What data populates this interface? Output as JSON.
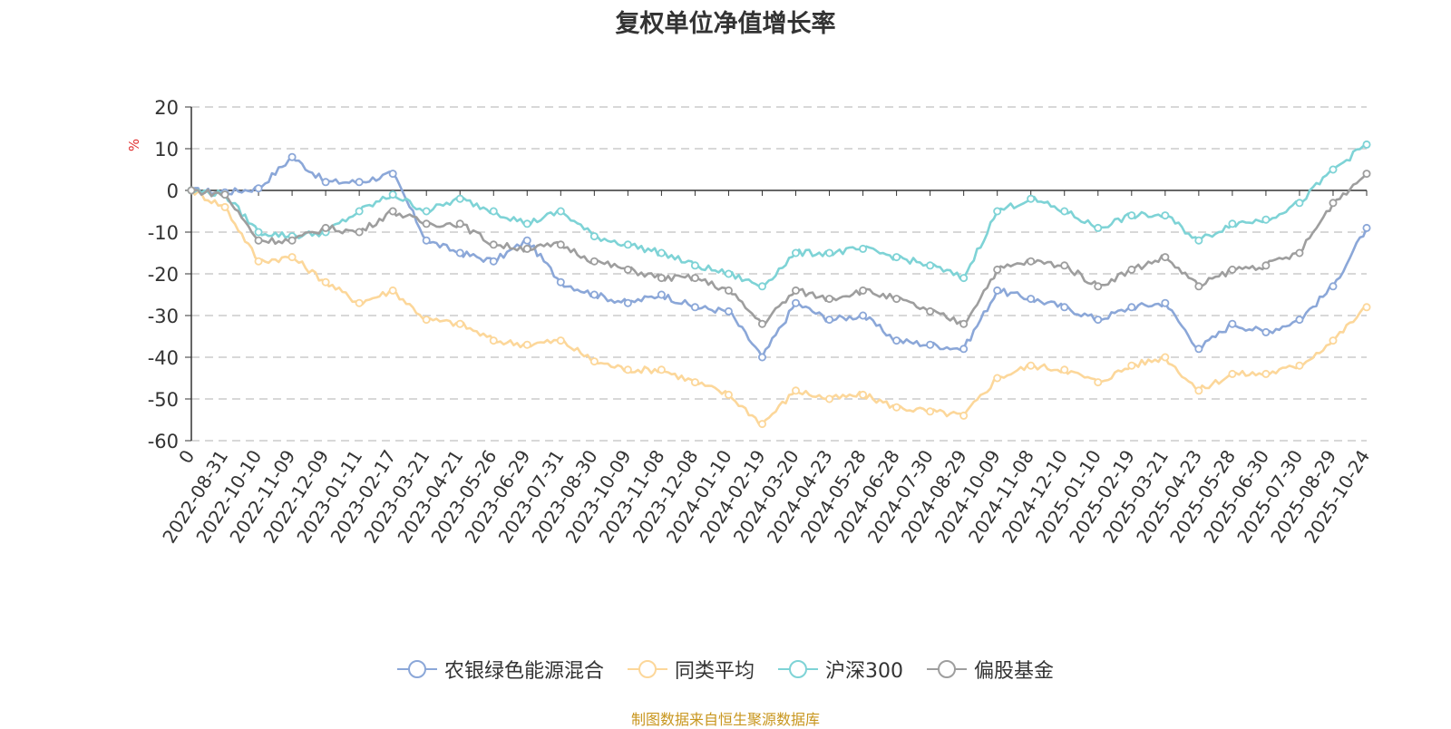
{
  "chart_data": {
    "type": "line",
    "title": "复权单位净值增长率",
    "ylabel": "%",
    "xlabel": "",
    "ylim": [
      -60,
      20
    ],
    "yticks": [
      20,
      10,
      0,
      -10,
      -20,
      -30,
      -40,
      -50,
      -60
    ],
    "categories": [
      "0",
      "2022-08-31",
      "2022-10-10",
      "2022-11-09",
      "2022-12-09",
      "2023-01-11",
      "2023-02-17",
      "2023-03-21",
      "2023-04-21",
      "2023-05-26",
      "2023-06-29",
      "2023-07-31",
      "2023-08-30",
      "2023-10-09",
      "2023-11-08",
      "2023-12-08",
      "2024-01-10",
      "2024-02-19",
      "2024-03-20",
      "2024-04-23",
      "2024-05-28",
      "2024-06-28",
      "2024-07-30",
      "2024-08-29",
      "2024-10-09",
      "2024-11-08",
      "2024-12-10",
      "2025-01-10",
      "2025-02-19",
      "2025-03-21",
      "2025-04-23",
      "2025-05-28",
      "2025-06-30",
      "2025-07-30",
      "2025-08-29",
      "2025-10-24"
    ],
    "grid": true,
    "legend_position": "bottom",
    "series": [
      {
        "name": "农银绿色能源混合",
        "color": "#8ba7d8",
        "values": [
          0,
          -0.5,
          0.5,
          8,
          2,
          2,
          4,
          -12,
          -15,
          -17,
          -12,
          -22,
          -25,
          -27,
          -25,
          -28,
          -29,
          -40,
          -27,
          -31,
          -30,
          -36,
          -37,
          -38,
          -24,
          -26,
          -28,
          -31,
          -28,
          -27,
          -38,
          -32,
          -34,
          -31,
          -23,
          -9
        ]
      },
      {
        "name": "同类平均",
        "color": "#fcd79a",
        "values": [
          0,
          -4,
          -17,
          -16,
          -22,
          -27,
          -24,
          -31,
          -32,
          -36,
          -37,
          -36,
          -41,
          -43,
          -43,
          -46,
          -49,
          -56,
          -48,
          -50,
          -49,
          -52,
          -53,
          -54,
          -45,
          -42,
          -43,
          -46,
          -42,
          -40,
          -48,
          -44,
          -44,
          -42,
          -36,
          -28
        ]
      },
      {
        "name": "沪深300",
        "color": "#7ed3d6",
        "values": [
          0,
          -1,
          -10,
          -11,
          -10,
          -5,
          -1,
          -5,
          -2,
          -5,
          -8,
          -5,
          -11,
          -13,
          -15,
          -18,
          -20,
          -23,
          -15,
          -15,
          -14,
          -16,
          -18,
          -21,
          -5,
          -2,
          -5,
          -9,
          -6,
          -6,
          -12,
          -8,
          -7,
          -3,
          5,
          11
        ]
      },
      {
        "name": "偏股基金",
        "color": "#9e9e9e",
        "values": [
          0,
          -1,
          -12,
          -12,
          -9,
          -10,
          -5,
          -8,
          -8,
          -13,
          -14,
          -13,
          -17,
          -19,
          -21,
          -21,
          -24,
          -32,
          -24,
          -26,
          -24,
          -26,
          -29,
          -32,
          -19,
          -17,
          -18,
          -23,
          -19,
          -16,
          -23,
          -19,
          -18,
          -15,
          -3,
          4
        ]
      }
    ]
  },
  "source_text": "制图数据来自恒生聚源数据库"
}
